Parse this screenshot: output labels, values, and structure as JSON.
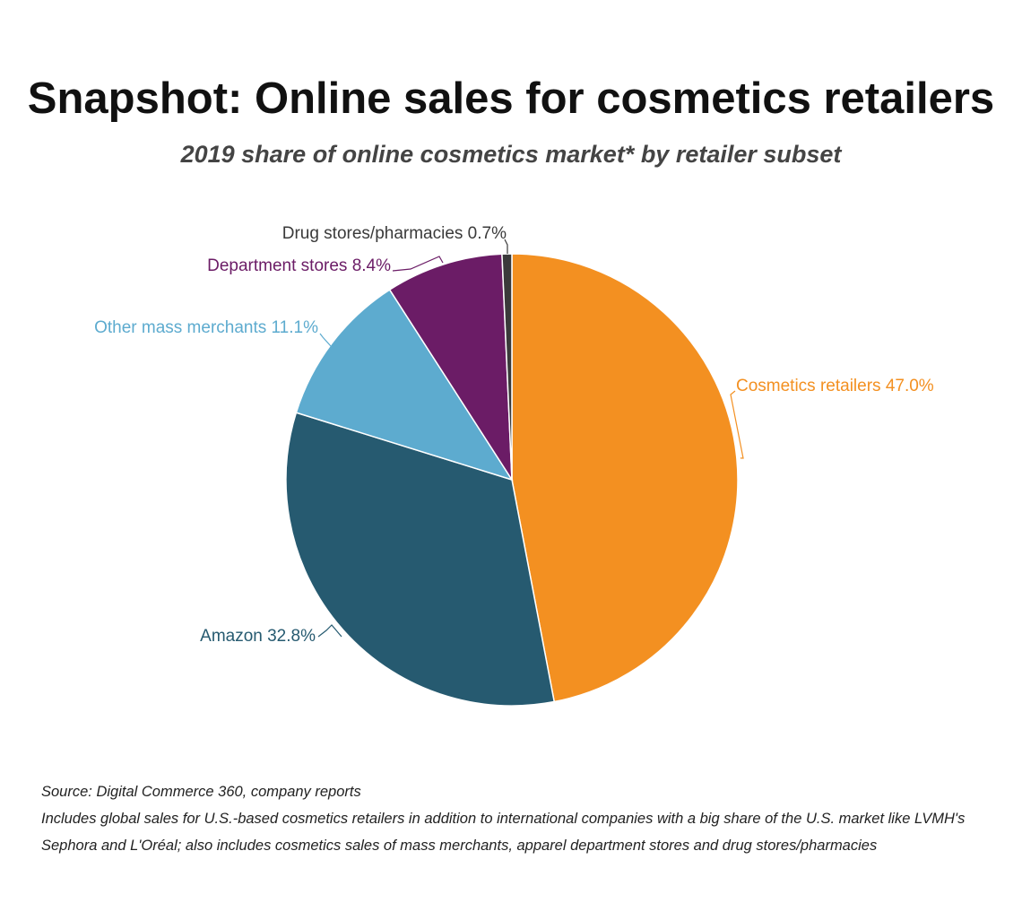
{
  "chart_data": {
    "type": "pie",
    "title": "Snapshot: Online sales for cosmetics retailers",
    "subtitle": "2019 share of online cosmetics market* by retailer subset",
    "unit": "%",
    "slices": [
      {
        "label": "Cosmetics retailers",
        "value": 47.0,
        "display": "Cosmetics retailers 47.0%",
        "color": "#f39021",
        "label_color": "#f39021"
      },
      {
        "label": "Amazon",
        "value": 32.8,
        "display": "Amazon 32.8%",
        "color": "#265a70",
        "label_color": "#265a70"
      },
      {
        "label": "Other mass merchants",
        "value": 11.1,
        "display": "Other mass merchants 11.1%",
        "color": "#5dabcf",
        "label_color": "#5dabcf"
      },
      {
        "label": "Department stores",
        "value": 8.4,
        "display": "Department stores 8.4%",
        "color": "#6b1c66",
        "label_color": "#6b1c66"
      },
      {
        "label": "Drug stores/pharmacies",
        "value": 0.7,
        "display": "Drug stores/pharmacies 0.7%",
        "color": "#3a3a3a",
        "label_color": "#3a3a3a"
      }
    ]
  },
  "footnotes": {
    "source": "Source: Digital Commerce 360, company reports",
    "note": "Includes global sales for U.S.-based cosmetics retailers in addition to international companies with a big share of the U.S. market like LVMH's Sephora and L'Oréal; also includes cosmetics sales of mass merchants, apparel department stores and drug stores/pharmacies"
  }
}
